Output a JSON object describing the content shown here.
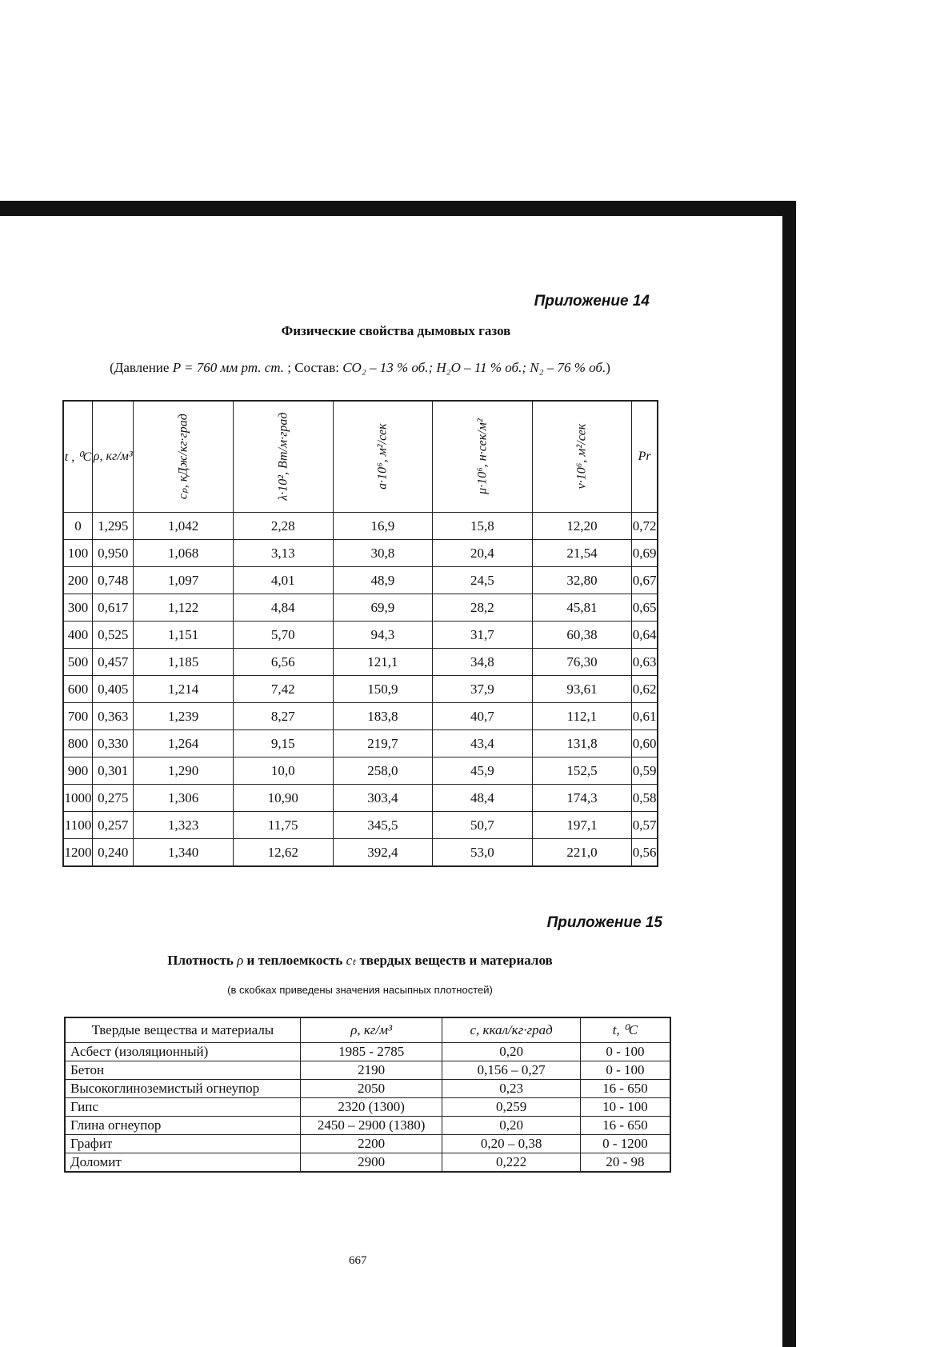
{
  "appendix14": {
    "label": "Приложение 14",
    "title": "Физические свойства дымовых газов",
    "subtitle_prefix": "(Давление ",
    "subtitle_pressure": "P = 760 мм рт. ст.",
    "subtitle_mid": " ; Состав: ",
    "subtitle_composition": "CO₂ – 13 % об.; H₂O – 11 % об.; N₂ – 76 % об.",
    "subtitle_suffix": ")",
    "headers": [
      "t , ⁰C",
      "ρ, кг/м³",
      "cₚ, кДж/кг·град",
      "λ·10², Вт/м·град",
      "a·10⁶, м²/сек",
      "μ·10⁶, н·сек/м²",
      "ν·10⁶, м²/сек",
      "Pr"
    ],
    "rows": [
      [
        "0",
        "1,295",
        "1,042",
        "2,28",
        "16,9",
        "15,8",
        "12,20",
        "0,72"
      ],
      [
        "100",
        "0,950",
        "1,068",
        "3,13",
        "30,8",
        "20,4",
        "21,54",
        "0,69"
      ],
      [
        "200",
        "0,748",
        "1,097",
        "4,01",
        "48,9",
        "24,5",
        "32,80",
        "0,67"
      ],
      [
        "300",
        "0,617",
        "1,122",
        "4,84",
        "69,9",
        "28,2",
        "45,81",
        "0,65"
      ],
      [
        "400",
        "0,525",
        "1,151",
        "5,70",
        "94,3",
        "31,7",
        "60,38",
        "0,64"
      ],
      [
        "500",
        "0,457",
        "1,185",
        "6,56",
        "121,1",
        "34,8",
        "76,30",
        "0,63"
      ],
      [
        "600",
        "0,405",
        "1,214",
        "7,42",
        "150,9",
        "37,9",
        "93,61",
        "0,62"
      ],
      [
        "700",
        "0,363",
        "1,239",
        "8,27",
        "183,8",
        "40,7",
        "112,1",
        "0,61"
      ],
      [
        "800",
        "0,330",
        "1,264",
        "9,15",
        "219,7",
        "43,4",
        "131,8",
        "0,60"
      ],
      [
        "900",
        "0,301",
        "1,290",
        "10,0",
        "258,0",
        "45,9",
        "152,5",
        "0,59"
      ],
      [
        "1000",
        "0,275",
        "1,306",
        "10,90",
        "303,4",
        "48,4",
        "174,3",
        "0,58"
      ],
      [
        "1100",
        "0,257",
        "1,323",
        "11,75",
        "345,5",
        "50,7",
        "197,1",
        "0,57"
      ],
      [
        "1200",
        "0,240",
        "1,340",
        "12,62",
        "392,4",
        "53,0",
        "221,0",
        "0,56"
      ]
    ]
  },
  "appendix15": {
    "label": "Приложение 15",
    "title_a": "Плотность ",
    "title_rho": "ρ",
    "title_b": " и теплоемкость ",
    "title_c": "cₜ",
    "title_d": " твердых веществ и материалов",
    "note": "(в скобках приведены значения насыпных плотностей)",
    "headers": [
      "Твердые вещества и материалы",
      "ρ, кг/м³",
      "c, ккал/кг·град",
      "t, ⁰C"
    ],
    "rows": [
      [
        "Асбест (изоляционный)",
        "1985 - 2785",
        "0,20",
        "0 - 100"
      ],
      [
        "Бетон",
        "2190",
        "0,156 – 0,27",
        "0 - 100"
      ],
      [
        "Высокоглиноземистый огнеупор",
        "2050",
        "0,23",
        "16 - 650"
      ],
      [
        "Гипс",
        "2320  (1300)",
        "0,259",
        "10 - 100"
      ],
      [
        "Глина огнеупор",
        "2450 – 2900 (1380)",
        "0,20",
        "16 - 650"
      ],
      [
        "Графит",
        "2200",
        "0,20 – 0,38",
        "0 - 1200"
      ],
      [
        "Доломит",
        "2900",
        "0,222",
        "20 - 98"
      ]
    ]
  },
  "page_number": "667"
}
